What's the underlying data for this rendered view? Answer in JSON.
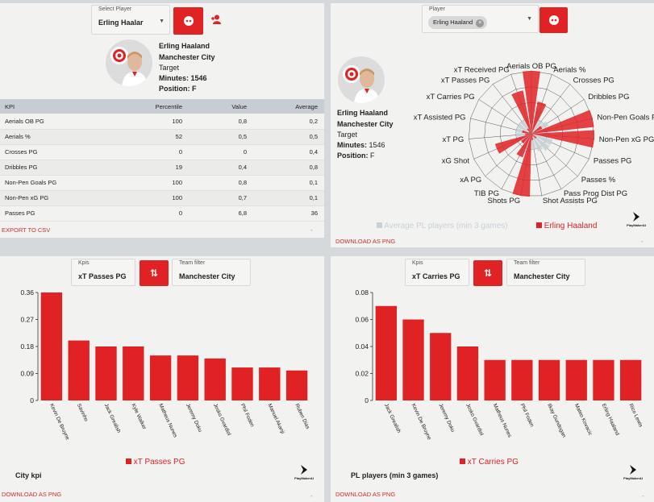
{
  "player_panel": {
    "select_label": "Select Player",
    "select_value": "Erling Haalar",
    "name": "Erling Haaland",
    "team": "Manchester City",
    "role": "Target",
    "minutes": "Minutes: 1546",
    "position": "Position: F",
    "table_headers": [
      "KPI",
      "Percentile",
      "Value",
      "Average"
    ],
    "rows": [
      [
        "Aerials OB PG",
        "100",
        "0,8",
        "0,2"
      ],
      [
        "Aerials %",
        "52",
        "0,5",
        "0,5"
      ],
      [
        "Crosses PG",
        "0",
        "0",
        "0,4"
      ],
      [
        "Dribbles PG",
        "19",
        "0,4",
        "0,8"
      ],
      [
        "Non-Pen Goals PG",
        "100",
        "0,8",
        "0,1"
      ],
      [
        "Non-Pen xG PG",
        "100",
        "0,7",
        "0,1"
      ],
      [
        "Passes PG",
        "0",
        "6,8",
        "36"
      ]
    ],
    "export_label": "EXPORT TO CSV",
    "dash": "-"
  },
  "radar_panel": {
    "select_label": "Player",
    "chip": "Erling Haaland",
    "name": "Erling Haaland",
    "team": "Manchester City",
    "role": "Target",
    "minutes_label": "Minutes:",
    "minutes_value": "1546",
    "position_label": "Position:",
    "position_value": "F",
    "legend_avg": "Average PL players (min 3 games)",
    "legend_player": "Erling Haaland",
    "download": "DOWNLOAD AS PNG",
    "logo": "PlayMakerAI",
    "dash": "-"
  },
  "city_panel": {
    "kpis_label": "Kpis",
    "kpis_value": "xT Passes PG",
    "team_label": "Team filter",
    "team_value": "Manchester City",
    "title": "City kpi",
    "legend": "xT Passes PG",
    "download": "DOWNLOAD AS PNG",
    "logo": "PlayMakerAI",
    "dash": "-"
  },
  "pl_panel": {
    "kpis_label": "Kpis",
    "kpis_value": "xT Carries PG",
    "team_label": "Team filter",
    "team_value": "Manchester City",
    "title": "PL players (min 3 games)",
    "legend": "xT Carries PG",
    "download": "DOWNLOAD AS PNG",
    "logo": "PlayMakerAI",
    "dash": "-"
  },
  "colors": {
    "accent": "#e02224",
    "avg": "#c9d1d6",
    "header_bg": "#c8cdd3"
  },
  "chart_data": [
    {
      "type": "radar",
      "axes": [
        "Aerials OB PG",
        "Aerials %",
        "Crosses PG",
        "Dribbles PG",
        "Non-Pen Goals PG",
        "Non-Pen xG PG",
        "Passes PG",
        "Passes %",
        "Pass Prog Dist PG",
        "Shot Assists PG",
        "Shots PG",
        "TIB PG",
        "xA PG",
        "xG Shot",
        "xT PG",
        "xT Assisted PG",
        "xT Carries PG",
        "xT Passes PG",
        "xT Received PG"
      ],
      "series": [
        {
          "name": "Erling Haaland",
          "values": [
            100,
            52,
            0,
            19,
            100,
            100,
            0,
            10,
            5,
            10,
            100,
            40,
            20,
            60,
            10,
            15,
            5,
            10,
            70
          ]
        },
        {
          "name": "Average PL players (min 3 games)",
          "values": [
            30,
            40,
            25,
            30,
            30,
            30,
            35,
            35,
            30,
            25,
            30,
            25,
            20,
            25,
            25,
            25,
            25,
            25,
            25
          ]
        }
      ],
      "rlim": [
        0,
        100
      ]
    },
    {
      "type": "bar",
      "title": "City kpi",
      "categories": [
        "Kevin De Bruyne",
        "Savinho",
        "Jack Grealish",
        "Kyle Walker",
        "Matheus Nunes",
        "Jeremy Doku",
        "Josko Gvardiol",
        "Phil Foden",
        "Manuel Akanji",
        "Ruben Dias"
      ],
      "values": [
        0.36,
        0.2,
        0.18,
        0.18,
        0.15,
        0.15,
        0.14,
        0.11,
        0.11,
        0.1
      ],
      "series_name": "xT Passes PG",
      "yticks": [
        "0",
        "0.09",
        "0.18",
        "0.27",
        "0.36"
      ],
      "ylim": [
        0,
        0.36
      ]
    },
    {
      "type": "bar",
      "title": "PL players (min 3 games)",
      "categories": [
        "Jack Grealish",
        "Kevin De Bruyne",
        "Jeremy Doku",
        "Josko Gvardiol",
        "Matheus Nunes",
        "Phil Foden",
        "Ilkay Gundogan",
        "Mateo Kovacic",
        "Erling Haaland",
        "Rico Lewis"
      ],
      "values": [
        0.07,
        0.06,
        0.05,
        0.04,
        0.03,
        0.03,
        0.03,
        0.03,
        0.03,
        0.03
      ],
      "series_name": "xT Carries PG",
      "yticks": [
        "0",
        "0.02",
        "0.04",
        "0.06",
        "0.08"
      ],
      "ylim": [
        0,
        0.08
      ]
    }
  ]
}
